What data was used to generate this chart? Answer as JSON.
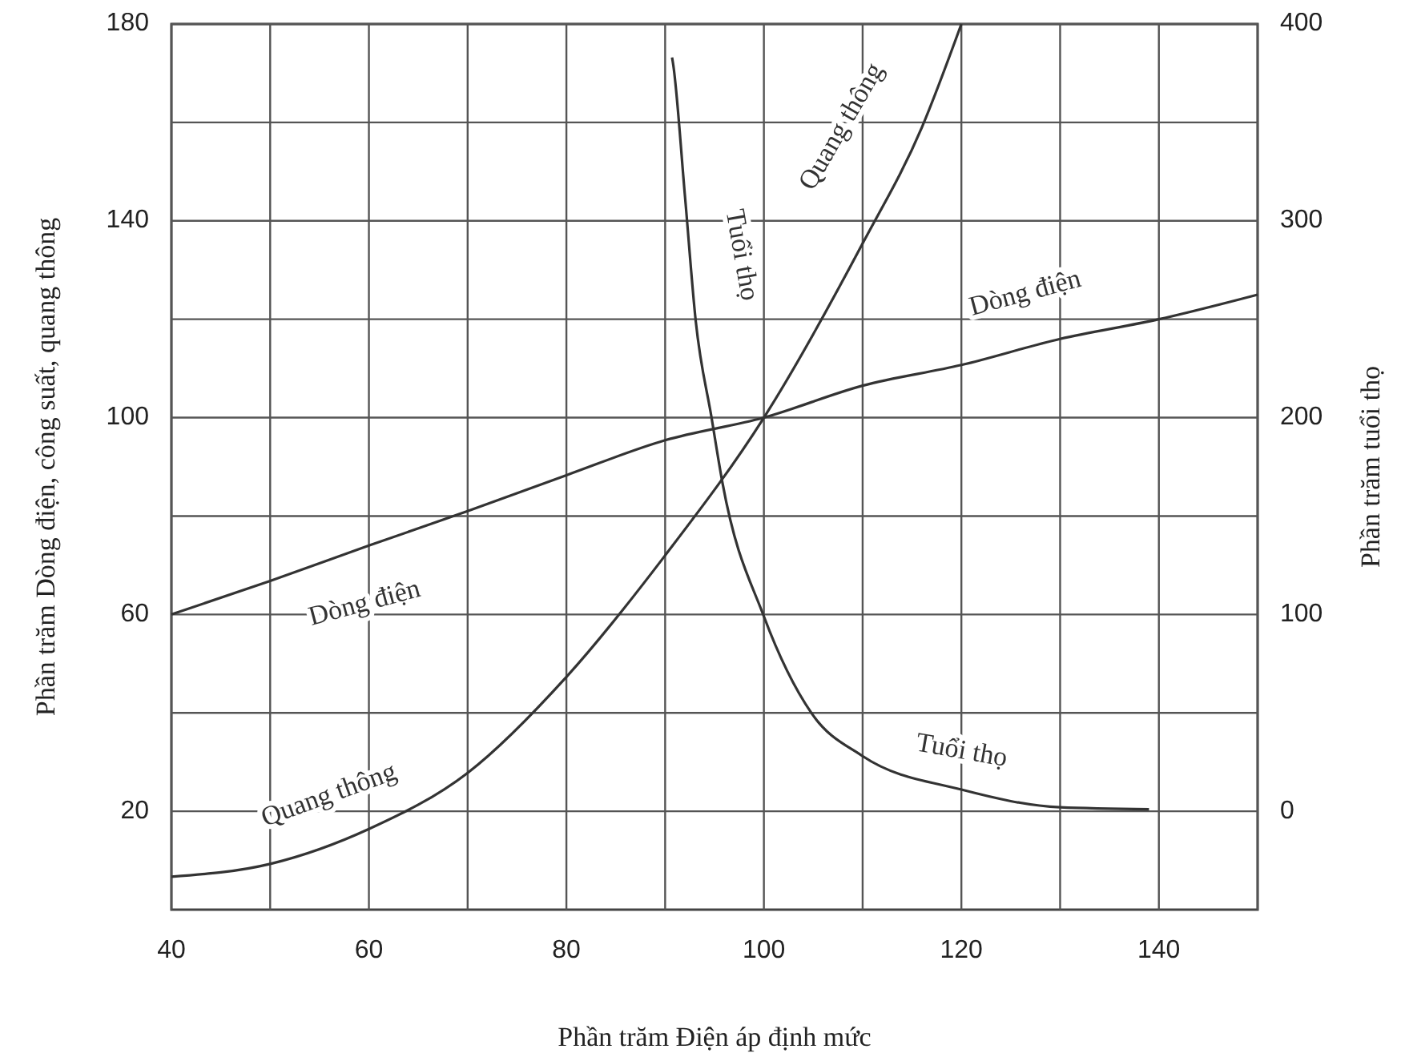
{
  "chart_data": {
    "type": "line",
    "xlabel": "Phần trăm Điện áp định mức",
    "ylabel": "Phần trăm  Dòng điện, công suất, quang thông",
    "y2label": "Phần trăm tuổi thọ",
    "xlim": [
      40,
      150
    ],
    "xticks": [
      40,
      {
        "value": 50,
        "label": null
      },
      60,
      {
        "value": 70,
        "label": null
      },
      80,
      {
        "value": 90,
        "label": null
      },
      100,
      {
        "value": 110,
        "label": null
      },
      120,
      {
        "value": 130,
        "label": null
      },
      140,
      {
        "value": 150,
        "label": null
      }
    ],
    "ylim": [
      0,
      180
    ],
    "yticks": [
      20,
      {
        "value": 40,
        "label": null
      },
      60,
      {
        "value": 80,
        "label": null
      },
      100,
      {
        "value": 120,
        "label": null
      },
      140,
      {
        "value": 160,
        "label": null
      },
      180
    ],
    "y2lim": [
      -50,
      400
    ],
    "y2ticks": [
      0,
      100,
      200,
      300,
      400
    ],
    "grid": true,
    "marker": "none",
    "line_style": "solid",
    "series": [
      {
        "name": "Dòng điện",
        "color": "#333333",
        "x": [
          40,
          50,
          60,
          70,
          80,
          90,
          100,
          110,
          120,
          130,
          140,
          150
        ],
        "values": [
          60,
          66.8,
          74,
          81,
          88.3,
          95.4,
          100,
          106.5,
          110.7,
          116,
          120,
          125
        ]
      },
      {
        "name": "Quang thông",
        "color": "#333333",
        "x": [
          40,
          50,
          60,
          70,
          80,
          90,
          100,
          110,
          116,
          120
        ],
        "values": [
          6.7,
          9.3,
          16.4,
          27.8,
          47.3,
          72,
          100,
          135.4,
          159,
          180
        ]
      },
      {
        "name": "Tuổi thọ",
        "color": "#333333",
        "axis": "y2",
        "x": [
          90.7,
          90.8,
          92,
          93.1,
          94.7,
          95.8,
          100,
          104.8,
          110,
          120,
          130,
          139
        ],
        "values": [
          383,
          380,
          313,
          249,
          200,
          167,
          99,
          50,
          28,
          11,
          2,
          1
        ]
      }
    ]
  }
}
